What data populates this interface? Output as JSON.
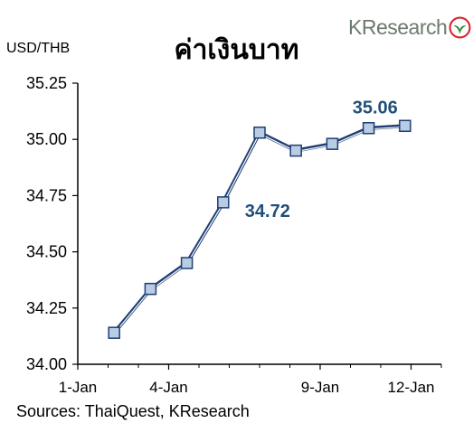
{
  "title": "ค่าเงินบาท",
  "logo": {
    "text": "KResearch",
    "icon": "kasikorn-leaf-icon",
    "color": "#6b7a6e",
    "accent": "#d9262e"
  },
  "unit_label": "USD/THB",
  "source": "Sources: ThaiQuest, KResearch",
  "chart_data": {
    "type": "line",
    "title": "ค่าเงินบาท",
    "ylabel": "USD/THB",
    "xlabel": "",
    "ylim": [
      34.0,
      35.25
    ],
    "yticks": [
      "34.00",
      "34.25",
      "34.50",
      "34.75",
      "35.00",
      "35.25"
    ],
    "xlim": [
      1,
      13
    ],
    "xticks": [
      {
        "day": 1,
        "label": "1-Jan"
      },
      {
        "day": 4,
        "label": "4-Jan"
      },
      {
        "day": 9,
        "label": "9-Jan"
      },
      {
        "day": 12,
        "label": "12-Jan"
      }
    ],
    "series": [
      {
        "color": "#1f3f73",
        "marker": "square",
        "marker_fill": "#b8cce4",
        "points": [
          {
            "day": 2.2,
            "value": 34.14
          },
          {
            "day": 3.4,
            "value": 34.335
          },
          {
            "day": 4.6,
            "value": 34.45
          },
          {
            "day": 5.8,
            "value": 34.72
          },
          {
            "day": 7.0,
            "value": 35.03
          },
          {
            "day": 8.2,
            "value": 34.95
          },
          {
            "day": 9.4,
            "value": 34.98
          },
          {
            "day": 10.6,
            "value": 35.05
          },
          {
            "day": 11.8,
            "value": 35.06
          }
        ]
      }
    ],
    "annotations": [
      {
        "text": "34.72",
        "point_index": 3
      },
      {
        "text": "35.06",
        "point_index": 8
      }
    ],
    "grid": false,
    "legend": "none"
  }
}
